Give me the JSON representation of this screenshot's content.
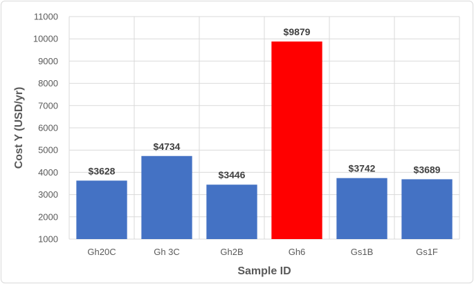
{
  "chart_data": {
    "type": "bar",
    "title": "",
    "xlabel": "Sample ID",
    "ylabel": "Cost Y (USD/yr)",
    "ylim": [
      1000,
      11000
    ],
    "yticks": [
      1000,
      2000,
      3000,
      4000,
      5000,
      6000,
      7000,
      8000,
      9000,
      10000,
      11000
    ],
    "grid": "vertical-and-horizontal",
    "legend": "none",
    "categories": [
      "Gh20C",
      "Gh 3C",
      "Gh2B",
      "Gh6",
      "Gs1B",
      "Gs1F"
    ],
    "values": [
      3628,
      4734,
      3446,
      9879,
      3742,
      3689
    ],
    "data_labels": [
      "$3628",
      "$4734",
      "$3446",
      "$9879",
      "$3742",
      "$3689"
    ],
    "colors": {
      "default_bar": "#4472c4",
      "highlight_bar": "#ff0000",
      "highlight_category": "Gh6",
      "gridline": "#d9d9d9"
    }
  }
}
